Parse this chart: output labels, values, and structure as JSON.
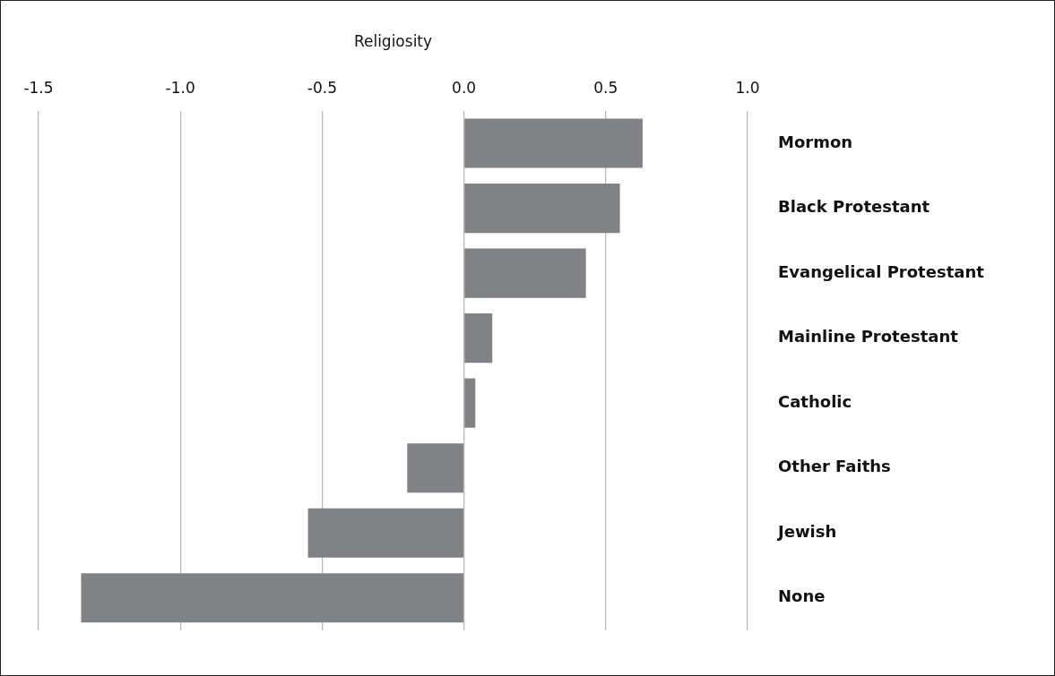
{
  "chart_data": {
    "type": "bar",
    "orientation": "horizontal",
    "xlabel": "Religiosity",
    "categories": [
      "Mormon",
      "Black Protestant",
      "Evangelical Protestant",
      "Mainline Protestant",
      "Catholic",
      "Other Faiths",
      "Jewish",
      "None"
    ],
    "values": [
      0.63,
      0.55,
      0.43,
      0.1,
      0.04,
      -0.2,
      -0.55,
      -1.35
    ],
    "color": "#808285",
    "xlim": [
      -1.5,
      1.0
    ],
    "xticks": [
      {
        "value": -1.5,
        "label": "-1.5"
      },
      {
        "value": -1,
        "label": "-1.0"
      },
      {
        "value": -0.5,
        "label": "-0.5"
      },
      {
        "value": 0,
        "label": "0.0"
      },
      {
        "value": 0.5,
        "label": "0.5"
      },
      {
        "value": 1,
        "label": "1.0"
      }
    ],
    "grid": "x",
    "legend": false
  }
}
